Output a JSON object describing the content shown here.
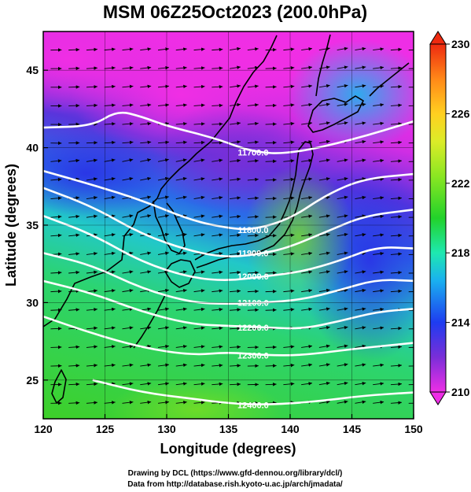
{
  "chart_data": {
    "type": "heatmap",
    "title": "MSM 06Z25Oct2023 (200.0hPa)",
    "xlabel": "Longitude (degrees)",
    "ylabel": "Latitude (degrees)",
    "xlim": [
      120,
      150
    ],
    "ylim": [
      22.5,
      47.5
    ],
    "x_ticks": [
      120,
      125,
      130,
      135,
      140,
      145,
      150
    ],
    "y_ticks": [
      25,
      30,
      35,
      40,
      45
    ],
    "grid": true,
    "colorbar": {
      "range": [
        210,
        230
      ],
      "ticks": [
        210,
        214,
        218,
        222,
        226,
        230
      ],
      "colors": [
        "#ee2ee6",
        "#7a2ed8",
        "#1e3cf0",
        "#1ab0f0",
        "#1ee8b0",
        "#22d22a",
        "#8ae622",
        "#dcec28",
        "#ffd020",
        "#ff8818",
        "#ee2a10"
      ]
    },
    "shaded_field": {
      "description_levels": [
        {
          "region": "northwest",
          "value": 210
        },
        {
          "region": "north-central",
          "value": 213
        },
        {
          "region": "east-central",
          "value": 216
        },
        {
          "region": "central",
          "value": 222
        },
        {
          "region": "southwest",
          "value": 223
        }
      ]
    },
    "contours": [
      {
        "label": "11700.0",
        "points": [
          [
            120,
            41.3
          ],
          [
            124,
            41.4
          ],
          [
            126,
            42.4
          ],
          [
            128,
            42.0
          ],
          [
            130,
            41.4
          ],
          [
            134,
            40.6
          ],
          [
            137,
            39.7
          ],
          [
            140,
            39.6
          ],
          [
            145,
            40.5
          ],
          [
            150,
            41.7
          ]
        ]
      },
      {
        "label": "11800.0",
        "points": [
          [
            120,
            38.5
          ],
          [
            124,
            37.6
          ],
          [
            128,
            36.6
          ],
          [
            132,
            35.3
          ],
          [
            135,
            34.8
          ],
          [
            137,
            34.7
          ],
          [
            140,
            35.4
          ],
          [
            143,
            37.0
          ],
          [
            146,
            38.0
          ],
          [
            150,
            38.3
          ]
        ]
      },
      {
        "label": "11900.0",
        "points": [
          [
            120,
            37.4
          ],
          [
            124,
            36.2
          ],
          [
            128,
            34.4
          ],
          [
            132,
            33.3
          ],
          [
            135,
            32.9
          ],
          [
            138,
            33.2
          ],
          [
            140,
            33.6
          ],
          [
            143,
            34.6
          ],
          [
            146,
            35.6
          ],
          [
            150,
            36.0
          ]
        ]
      },
      {
        "label": "12000.0",
        "points": [
          [
            120,
            35.6
          ],
          [
            124,
            34.4
          ],
          [
            128,
            32.6
          ],
          [
            132,
            31.6
          ],
          [
            135,
            31.4
          ],
          [
            138,
            31.7
          ],
          [
            141,
            32.0
          ],
          [
            144,
            32.7
          ],
          [
            147,
            33.6
          ],
          [
            150,
            33.5
          ]
        ]
      },
      {
        "label": "12100.0",
        "points": [
          [
            120,
            33.2
          ],
          [
            124,
            32.4
          ],
          [
            128,
            30.9
          ],
          [
            132,
            30.0
          ],
          [
            135,
            29.9
          ],
          [
            138,
            30.0
          ],
          [
            141,
            30.2
          ],
          [
            144,
            30.8
          ],
          [
            147,
            31.5
          ],
          [
            150,
            31.4
          ]
        ]
      },
      {
        "label": "12200.0",
        "points": [
          [
            120,
            31.4
          ],
          [
            124,
            30.6
          ],
          [
            128,
            29.4
          ],
          [
            132,
            28.6
          ],
          [
            135,
            28.5
          ],
          [
            138,
            28.4
          ],
          [
            141,
            28.3
          ],
          [
            144,
            28.8
          ],
          [
            147,
            29.4
          ],
          [
            150,
            29.6
          ]
        ]
      },
      {
        "label": "12300.0",
        "points": [
          [
            120,
            29.1
          ],
          [
            124,
            28.0
          ],
          [
            128,
            27.1
          ],
          [
            132,
            26.6
          ],
          [
            135,
            26.8
          ],
          [
            138,
            26.6
          ],
          [
            141,
            26.6
          ],
          [
            145,
            27.0
          ],
          [
            150,
            27.4
          ]
        ]
      },
      {
        "label": "12400.0",
        "points": [
          [
            124,
            25.0
          ],
          [
            128,
            24.2
          ],
          [
            132,
            23.8
          ],
          [
            135,
            23.5
          ],
          [
            138,
            23.4
          ],
          [
            142,
            23.6
          ],
          [
            146,
            24.0
          ],
          [
            150,
            24.2
          ]
        ]
      }
    ],
    "contour_unit_note": "",
    "wind_vectors": "eastward flow arrows across domain"
  },
  "credits": {
    "line1": "Drawing by DCL (https://www.gfd-dennou.org/library/dcl/)",
    "line2": "Data from http://database.rish.kyoto-u.ac.jp/arch/jmadata/"
  }
}
